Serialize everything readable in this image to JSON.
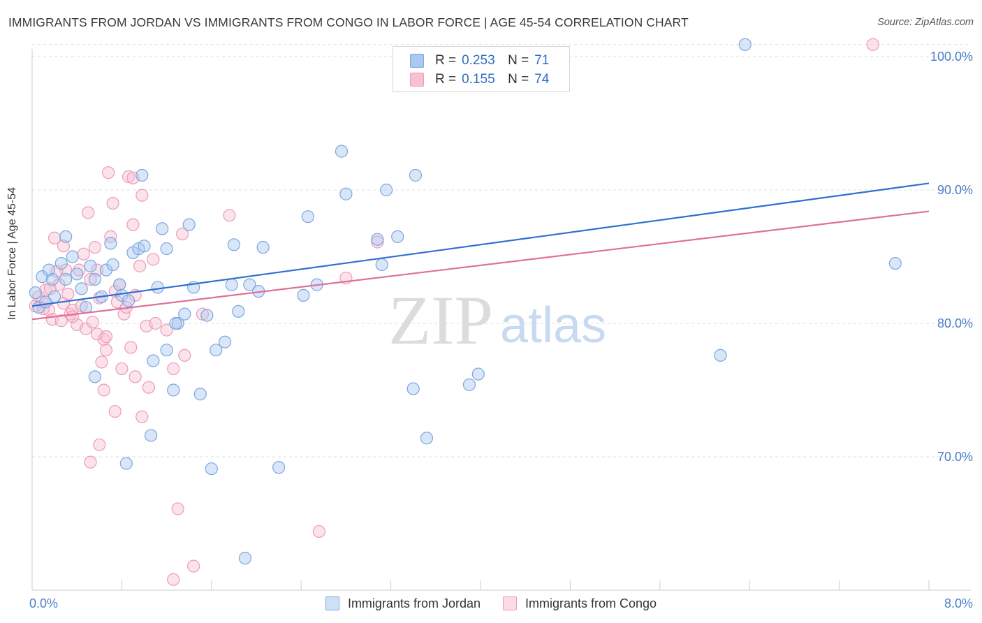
{
  "title": "IMMIGRANTS FROM JORDAN VS IMMIGRANTS FROM CONGO IN LABOR FORCE | AGE 45-54 CORRELATION CHART",
  "source": "Source: ZipAtlas.com",
  "watermark": {
    "zip": "ZIP",
    "atlas": "atlas"
  },
  "legend": {
    "r_label": "R =",
    "n_label": "N =",
    "rows": [
      {
        "r": "0.253",
        "n": "71",
        "color": "#7aa7e0"
      },
      {
        "r": "0.155",
        "n": "74",
        "color": "#f0a0bc"
      }
    ]
  },
  "bottom_legend": [
    "Immigrants from Jordan",
    "Immigrants from Congo"
  ],
  "colors": {
    "jordan_fill": "#aac8f0",
    "jordan_stroke": "#7aa7e0",
    "jordan_line": "#2f6fce",
    "congo_fill": "#f6c2d3",
    "congo_stroke": "#ee9ab8",
    "congo_line": "#e0709a",
    "axis_label": "#4a7fc9",
    "grid": "#dddddd"
  },
  "chart_data": {
    "type": "scatter",
    "title": "IMMIGRANTS FROM JORDAN VS IMMIGRANTS FROM CONGO IN LABOR FORCE | AGE 45-54 CORRELATION CHART",
    "xlabel": "",
    "ylabel": "In Labor Force | Age 45-54",
    "xlim": [
      0,
      8
    ],
    "ylim": [
      60.5,
      101
    ],
    "x_tick_labels": [
      "0.0%",
      "8.0%"
    ],
    "y_ticks": [
      70,
      80,
      90,
      100
    ],
    "y_tick_labels": [
      "70.0%",
      "80.0%",
      "90.0%",
      "100.0%"
    ],
    "series": [
      {
        "name": "Immigrants from Jordan",
        "R": 0.253,
        "N": 71,
        "trend": {
          "x": [
            0,
            8
          ],
          "y": [
            81.3,
            90.5
          ]
        },
        "points": [
          [
            0.03,
            82.3
          ],
          [
            0.06,
            81.2
          ],
          [
            0.09,
            83.5
          ],
          [
            0.12,
            81.6
          ],
          [
            0.15,
            84.0
          ],
          [
            0.18,
            83.3
          ],
          [
            0.2,
            82.0
          ],
          [
            0.26,
            84.5
          ],
          [
            0.3,
            86.5
          ],
          [
            0.36,
            85.0
          ],
          [
            0.4,
            83.7
          ],
          [
            0.44,
            82.6
          ],
          [
            0.48,
            81.2
          ],
          [
            0.52,
            84.3
          ],
          [
            0.56,
            83.3
          ],
          [
            0.62,
            82.0
          ],
          [
            0.66,
            84.0
          ],
          [
            0.7,
            86.0
          ],
          [
            0.72,
            84.4
          ],
          [
            0.78,
            82.9
          ],
          [
            0.8,
            82.1
          ],
          [
            0.86,
            81.7
          ],
          [
            0.9,
            85.3
          ],
          [
            0.95,
            85.6
          ],
          [
            1.0,
            85.8
          ],
          [
            1.06,
            71.6
          ],
          [
            1.12,
            82.7
          ],
          [
            1.16,
            87.1
          ],
          [
            1.2,
            85.6
          ],
          [
            1.26,
            75.0
          ],
          [
            1.3,
            80.0
          ],
          [
            1.36,
            80.7
          ],
          [
            1.4,
            87.4
          ],
          [
            1.44,
            82.7
          ],
          [
            1.5,
            74.7
          ],
          [
            1.56,
            80.6
          ],
          [
            1.6,
            69.1
          ],
          [
            1.64,
            78.0
          ],
          [
            1.72,
            78.6
          ],
          [
            1.78,
            82.9
          ],
          [
            1.8,
            85.9
          ],
          [
            1.84,
            80.9
          ],
          [
            1.9,
            62.4
          ],
          [
            1.94,
            82.9
          ],
          [
            2.02,
            82.4
          ],
          [
            2.06,
            85.7
          ],
          [
            2.2,
            69.2
          ],
          [
            2.42,
            82.1
          ],
          [
            2.46,
            88.0
          ],
          [
            2.54,
            82.9
          ],
          [
            2.76,
            92.9
          ],
          [
            2.8,
            89.7
          ],
          [
            3.08,
            86.3
          ],
          [
            3.12,
            84.4
          ],
          [
            3.16,
            90.0
          ],
          [
            3.26,
            86.5
          ],
          [
            3.4,
            75.1
          ],
          [
            3.42,
            91.1
          ],
          [
            3.52,
            71.4
          ],
          [
            3.9,
            75.4
          ],
          [
            3.98,
            76.2
          ],
          [
            6.14,
            77.6
          ],
          [
            7.7,
            84.5
          ],
          [
            0.3,
            83.3
          ],
          [
            0.56,
            76.0
          ],
          [
            0.84,
            69.5
          ],
          [
            1.08,
            77.2
          ],
          [
            1.2,
            78.0
          ],
          [
            1.28,
            80.0
          ],
          [
            0.98,
            91.1
          ],
          [
            6.36,
            100.9
          ]
        ]
      },
      {
        "name": "Immigrants from Congo",
        "R": 0.155,
        "N": 74,
        "trend": {
          "x": [
            0,
            8
          ],
          "y": [
            80.3,
            88.4
          ]
        },
        "points": [
          [
            0.03,
            81.3
          ],
          [
            0.06,
            82.0
          ],
          [
            0.09,
            81.6
          ],
          [
            0.12,
            82.5
          ],
          [
            0.15,
            81.0
          ],
          [
            0.18,
            80.3
          ],
          [
            0.2,
            86.4
          ],
          [
            0.24,
            82.9
          ],
          [
            0.28,
            81.5
          ],
          [
            0.3,
            84.0
          ],
          [
            0.34,
            80.7
          ],
          [
            0.36,
            81.0
          ],
          [
            0.4,
            79.9
          ],
          [
            0.42,
            84.0
          ],
          [
            0.46,
            85.2
          ],
          [
            0.48,
            79.6
          ],
          [
            0.5,
            88.3
          ],
          [
            0.52,
            83.3
          ],
          [
            0.56,
            85.7
          ],
          [
            0.58,
            84.0
          ],
          [
            0.6,
            81.9
          ],
          [
            0.62,
            77.1
          ],
          [
            0.64,
            75.0
          ],
          [
            0.66,
            78.0
          ],
          [
            0.7,
            86.5
          ],
          [
            0.72,
            89.0
          ],
          [
            0.74,
            82.4
          ],
          [
            0.76,
            81.6
          ],
          [
            0.8,
            76.6
          ],
          [
            0.82,
            80.7
          ],
          [
            0.86,
            91.0
          ],
          [
            0.88,
            78.2
          ],
          [
            0.9,
            87.4
          ],
          [
            0.92,
            76.0
          ],
          [
            0.96,
            84.3
          ],
          [
            0.98,
            73.0
          ],
          [
            1.02,
            79.8
          ],
          [
            1.04,
            75.2
          ],
          [
            1.08,
            84.8
          ],
          [
            1.2,
            79.5
          ],
          [
            1.26,
            76.6
          ],
          [
            1.3,
            66.1
          ],
          [
            1.34,
            86.7
          ],
          [
            1.36,
            77.6
          ],
          [
            1.44,
            61.8
          ],
          [
            1.52,
            80.7
          ],
          [
            1.76,
            88.1
          ],
          [
            2.56,
            64.4
          ],
          [
            2.8,
            83.4
          ],
          [
            3.08,
            86.1
          ],
          [
            7.5,
            100.9
          ],
          [
            0.9,
            90.9
          ],
          [
            0.68,
            91.3
          ],
          [
            0.98,
            89.6
          ],
          [
            0.52,
            69.6
          ],
          [
            0.6,
            70.9
          ],
          [
            0.74,
            73.4
          ],
          [
            1.26,
            60.8
          ],
          [
            0.64,
            78.8
          ],
          [
            0.44,
            81.3
          ],
          [
            0.36,
            80.5
          ],
          [
            0.28,
            85.8
          ],
          [
            0.22,
            83.9
          ],
          [
            0.16,
            82.6
          ],
          [
            0.1,
            81.1
          ],
          [
            0.26,
            80.2
          ],
          [
            0.32,
            82.2
          ],
          [
            0.54,
            80.1
          ],
          [
            0.58,
            79.2
          ],
          [
            0.66,
            79.0
          ],
          [
            0.78,
            82.9
          ],
          [
            0.84,
            81.2
          ],
          [
            0.92,
            82.1
          ],
          [
            1.1,
            80.0
          ]
        ]
      }
    ]
  }
}
